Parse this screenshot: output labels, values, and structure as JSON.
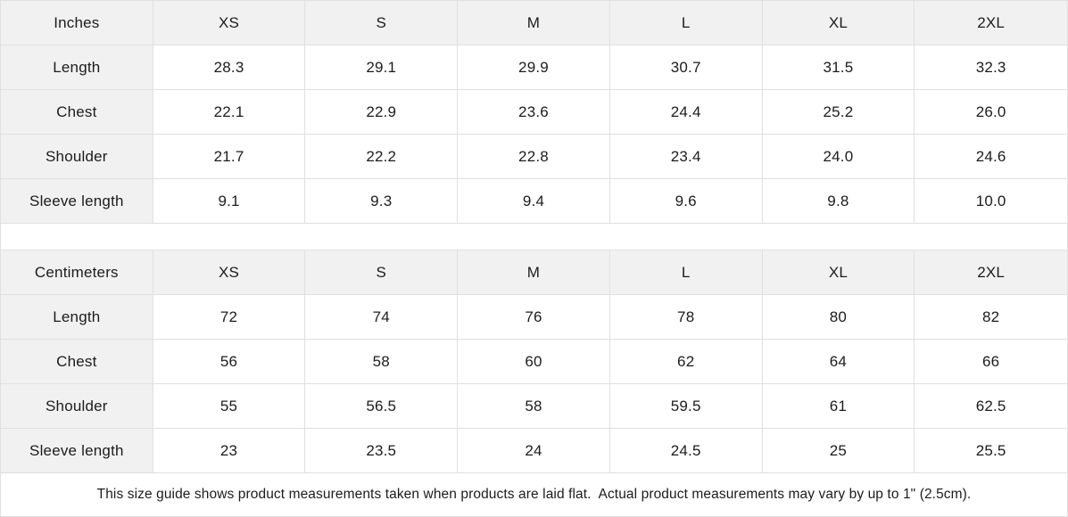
{
  "tables": [
    {
      "unit_label": "Inches",
      "sizes": [
        "XS",
        "S",
        "M",
        "L",
        "XL",
        "2XL"
      ],
      "rows": [
        {
          "label": "Length",
          "values": [
            "28.3",
            "29.1",
            "29.9",
            "30.7",
            "31.5",
            "32.3"
          ]
        },
        {
          "label": "Chest",
          "values": [
            "22.1",
            "22.9",
            "23.6",
            "24.4",
            "25.2",
            "26.0"
          ]
        },
        {
          "label": "Shoulder",
          "values": [
            "21.7",
            "22.2",
            "22.8",
            "23.4",
            "24.0",
            "24.6"
          ]
        },
        {
          "label": "Sleeve length",
          "values": [
            "9.1",
            "9.3",
            "9.4",
            "9.6",
            "9.8",
            "10.0"
          ]
        }
      ]
    },
    {
      "unit_label": "Centimeters",
      "sizes": [
        "XS",
        "S",
        "M",
        "L",
        "XL",
        "2XL"
      ],
      "rows": [
        {
          "label": "Length",
          "values": [
            "72",
            "74",
            "76",
            "78",
            "80",
            "82"
          ]
        },
        {
          "label": "Chest",
          "values": [
            "56",
            "58",
            "60",
            "62",
            "64",
            "66"
          ]
        },
        {
          "label": "Shoulder",
          "values": [
            "55",
            "56.5",
            "58",
            "59.5",
            "61",
            "62.5"
          ]
        },
        {
          "label": "Sleeve length",
          "values": [
            "23",
            "23.5",
            "24",
            "24.5",
            "25",
            "25.5"
          ]
        }
      ]
    }
  ],
  "footer": {
    "note": "This size guide shows product measurements taken when products are laid flat.  Actual product measurements may vary by up to 1\" (2.5cm)."
  },
  "colors": {
    "cell_header_bg": "#f1f1f1",
    "border": "#e0e0e0",
    "text": "#1c1c1c"
  }
}
